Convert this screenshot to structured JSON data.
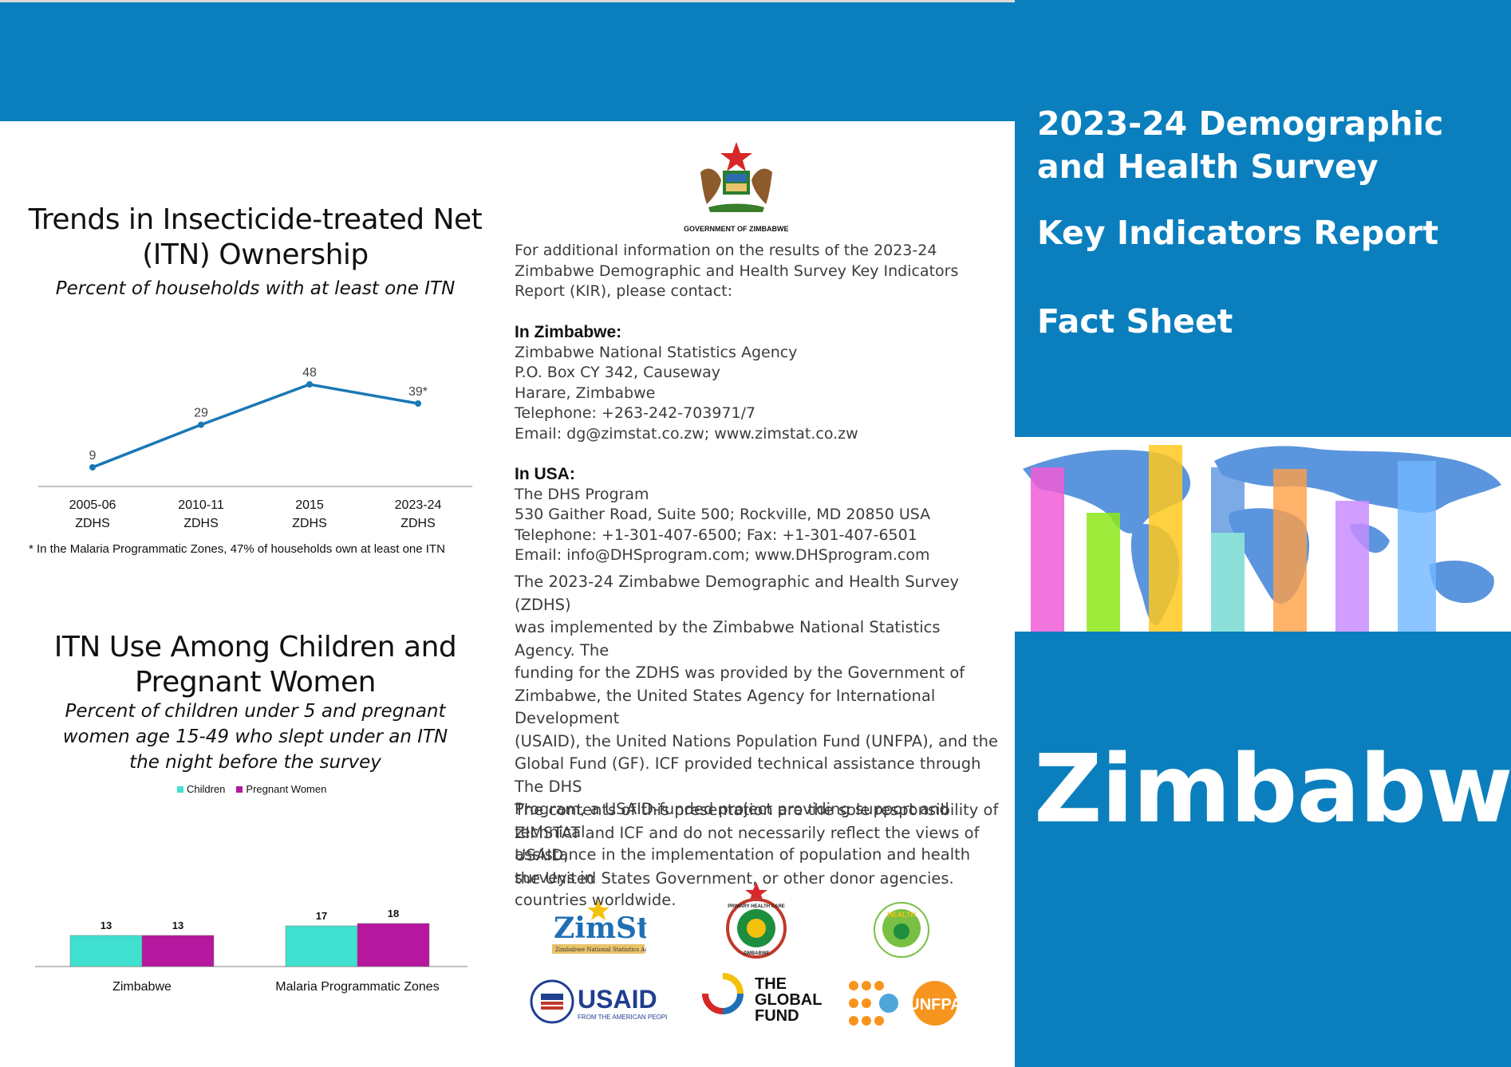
{
  "header": {
    "title_line1": "2023-24 Demographic",
    "title_line2": "and Health Survey",
    "subtitle": "Key Indicators Report",
    "doc_type": "Fact Sheet",
    "country": "Zimbabwe"
  },
  "colors": {
    "brand_blue": "#0b7fbd",
    "line_blue": "#1a78b5",
    "children_teal": "#40e0d0",
    "pregnant_magenta": "#b5179e"
  },
  "itn_ownership": {
    "title_line1": "Trends in Insecticide-treated Net",
    "title_line2": "(ITN) Ownership",
    "subtitle": "Percent of households with at least one ITN",
    "footnote": "* In the Malaria Programmatic Zones, 47% of households own at least one ITN"
  },
  "itn_use": {
    "title_line1": "ITN Use Among Children and",
    "title_line2": "Pregnant Women",
    "subtitle_line1": "Percent of children under 5 and pregnant",
    "subtitle_line2": "women age 15-49 who slept under an ITN",
    "subtitle_line3": "the night before the survey",
    "legend_children": "Children",
    "legend_pregnant": "Pregnant Women"
  },
  "chart_data": [
    {
      "type": "line",
      "title": "Trends in Insecticide-treated Net (ITN) Ownership",
      "subtitle": "Percent of households with at least one ITN",
      "categories": [
        [
          "2005-06",
          "ZDHS"
        ],
        [
          "2010-11",
          "ZDHS"
        ],
        [
          "2015",
          "ZDHS"
        ],
        [
          "2023-24",
          "ZDHS"
        ]
      ],
      "values": [
        9,
        29,
        48,
        39
      ],
      "data_labels": [
        "9",
        "29",
        "48",
        "39*"
      ],
      "ylim": [
        0,
        60
      ],
      "grid": false
    },
    {
      "type": "bar",
      "title": "ITN Use Among Children and Pregnant Women",
      "categories": [
        "Zimbabwe",
        "Malaria Programmatic Zones"
      ],
      "series": [
        {
          "name": "Children",
          "values": [
            13,
            17
          ]
        },
        {
          "name": "Pregnant Women",
          "values": [
            13,
            18
          ]
        }
      ],
      "ylim": [
        0,
        60
      ],
      "legend": "top-center",
      "grid": false
    }
  ],
  "contact": {
    "gov_caption": "GOVERNMENT OF ZIMBABWE",
    "intro_line1": "For additional information on the results of the 2023-24",
    "intro_line2": "Zimbabwe Demographic and Health Survey Key Indicators",
    "intro_line3": "Report (KIR), please contact:",
    "zim_heading": "In Zimbabwe:",
    "zim_line1": "Zimbabwe National Statistics Agency",
    "zim_line2": "P.O. Box CY 342, Causeway",
    "zim_line3": "Harare, Zimbabwe",
    "zim_line4": "Telephone: +263-242-703971/7",
    "zim_line5": "Email: dg@zimstat.co.zw; www.zimstat.co.zw",
    "usa_heading": "In USA:",
    "usa_line1": "The DHS Program",
    "usa_line2": "530 Gaither Road, Suite 500; Rockville, MD 20850 USA",
    "usa_line3": "Telephone: +1-301-407-6500; Fax: +1-301-407-6501",
    "usa_line4": "Email: info@DHSprogram.com; www.DHSprogram.com"
  },
  "description": {
    "para1_l1": "The 2023-24 Zimbabwe Demographic and Health Survey (ZDHS)",
    "para1_l2": "was implemented by the Zimbabwe National Statistics Agency. The",
    "para1_l3": "funding for the ZDHS was provided by the Government of",
    "para1_l4": "Zimbabwe, the United States Agency for International Development",
    "para1_l5": "(USAID), the United Nations Population Fund (UNFPA), and the",
    "para1_l6": "Global Fund (GF). ICF provided technical assistance through The DHS",
    "para1_l7": "Program, a USAID-funded project providing support and technical",
    "para1_l8": "assistance in the implementation of population and health surveys in",
    "para1_l9": "countries worldwide.",
    "para2_l1": "The contents of this presentation are the sole responsibility of",
    "para2_l2": "ZIMSTAT and ICF and do not necessarily reflect the views of USAID,",
    "para2_l3": "the United States Government, or other donor agencies."
  },
  "logos": {
    "zimstat_name": "ZimStat",
    "zimstat_caption": "Zimbabwe National Statistics Agency",
    "usaid_name": "USAID",
    "usaid_tagline": "FROM THE AMERICAN PEOPLE",
    "globalfund_l1": "THE",
    "globalfund_l2": "GLOBAL",
    "globalfund_l3": "FUND",
    "unfpa_name": "UNFPA",
    "health_name": "HEALTH",
    "phc_name": "PRIMARY HEALTH CARE",
    "phc_caption": "ZIMBABWE"
  }
}
